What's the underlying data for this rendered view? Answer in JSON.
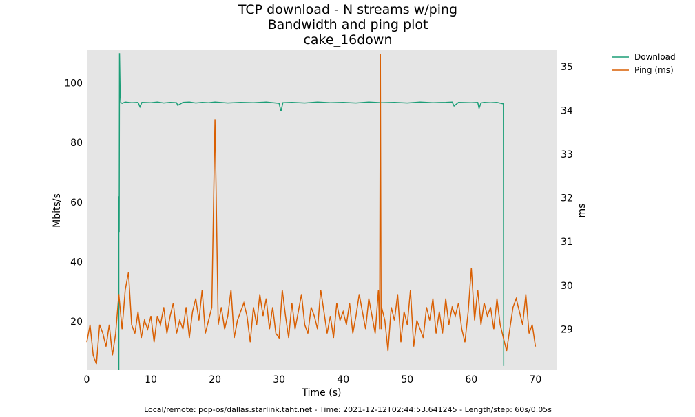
{
  "chart_data": {
    "type": "line",
    "title": [
      "TCP download - N streams w/ping",
      "Bandwidth and ping plot",
      "cake_16down"
    ],
    "xlabel": "Time (s)",
    "ylabel": "Mbits/s",
    "ylabel_right": "ms",
    "xlim": [
      0,
      73.4
    ],
    "ylim": [
      3.6,
      111
    ],
    "ylim_right": [
      28.06,
      35.38
    ],
    "xticks": [
      0,
      10,
      20,
      30,
      40,
      50,
      60,
      70
    ],
    "yticks": [
      20,
      40,
      60,
      80,
      100
    ],
    "yticks_right": [
      29,
      30,
      31,
      32,
      33,
      34,
      35
    ],
    "grid": false,
    "background": "#e5e5e5",
    "legend_position": "outside-top-right",
    "series": [
      {
        "name": "Download",
        "axis": "left",
        "color": "#1b9e77",
        "x": [
          5.0,
          5.0,
          5.05,
          5.1,
          5.2,
          5.3,
          5.5,
          6,
          7,
          8,
          8.3,
          8.6,
          10,
          11,
          12,
          13,
          14,
          14.2,
          15,
          16,
          17,
          18,
          19,
          20,
          22,
          24,
          26,
          28,
          30,
          30.3,
          30.6,
          32,
          34,
          36,
          38,
          40,
          42,
          44,
          46,
          48,
          50,
          52,
          54,
          56,
          57,
          57.3,
          58,
          60,
          61,
          61.2,
          61.5,
          62,
          63,
          64,
          65.0,
          65.05
        ],
        "y": [
          3.6,
          62,
          50,
          110,
          97,
          93.5,
          93.2,
          93.6,
          93.4,
          93.5,
          92,
          93.5,
          93.4,
          93.6,
          93.3,
          93.5,
          93.4,
          92.5,
          93.5,
          93.6,
          93.3,
          93.5,
          93.4,
          93.6,
          93.3,
          93.5,
          93.4,
          93.6,
          93.2,
          90.5,
          93.4,
          93.5,
          93.3,
          93.6,
          93.4,
          93.5,
          93.3,
          93.6,
          93.4,
          93.5,
          93.3,
          93.6,
          93.4,
          93.5,
          93.6,
          92.3,
          93.5,
          93.4,
          93.5,
          91.5,
          93.3,
          93.5,
          93.4,
          93.5,
          93.0,
          5.0
        ]
      },
      {
        "name": "Ping (ms)",
        "axis": "right",
        "color": "#d95f02",
        "x_start": 0,
        "x_step": 0.5,
        "y": [
          28.7,
          29.1,
          28.4,
          28.2,
          29.1,
          28.9,
          28.6,
          29.1,
          28.4,
          28.9,
          29.8,
          29.0,
          29.9,
          30.3,
          29.1,
          28.9,
          29.4,
          28.8,
          29.2,
          29.0,
          29.3,
          28.7,
          29.3,
          29.1,
          29.5,
          28.9,
          29.3,
          29.6,
          28.9,
          29.2,
          29.0,
          29.5,
          28.8,
          29.4,
          29.7,
          29.2,
          29.9,
          28.9,
          29.2,
          29.5,
          33.8,
          29.1,
          29.5,
          29.0,
          29.3,
          29.9,
          28.8,
          29.2,
          29.4,
          29.6,
          29.3,
          28.7,
          29.5,
          29.1,
          29.8,
          29.3,
          29.7,
          29.0,
          29.5,
          28.9,
          28.8,
          29.9,
          29.3,
          28.8,
          29.6,
          29.0,
          29.4,
          29.8,
          29.1,
          28.9,
          29.5,
          29.3,
          29.0,
          29.9,
          29.4,
          28.9,
          29.3,
          28.8,
          29.6,
          29.2,
          29.4,
          29.1,
          29.6,
          28.9,
          29.3,
          29.8,
          29.4,
          29.0,
          29.7,
          29.3,
          28.9,
          29.9,
          29.5,
          29.2,
          28.5,
          29.5,
          29.2,
          29.8,
          28.7,
          29.4,
          29.1,
          29.9,
          28.6,
          29.2,
          29.0,
          28.8,
          29.5,
          29.2,
          29.7,
          28.9,
          29.4,
          28.9,
          29.7,
          29.1,
          29.5,
          29.3,
          29.6,
          29.0,
          28.7,
          29.4,
          30.4,
          29.2,
          29.9,
          29.1,
          29.6,
          29.3,
          29.5,
          29.0,
          29.7,
          29.1,
          28.8,
          28.5,
          29.0,
          29.5,
          29.7,
          29.4,
          29.1,
          29.8,
          28.9,
          29.1,
          28.6
        ],
        "spikes": [
          {
            "x": 45.8,
            "y": 35.3
          }
        ]
      }
    ]
  },
  "footer": "Local/remote: pop-os/dallas.starlink.taht.net - Time: 2021-12-12T02:44:53.641245 - Length/step: 60s/0.05s"
}
